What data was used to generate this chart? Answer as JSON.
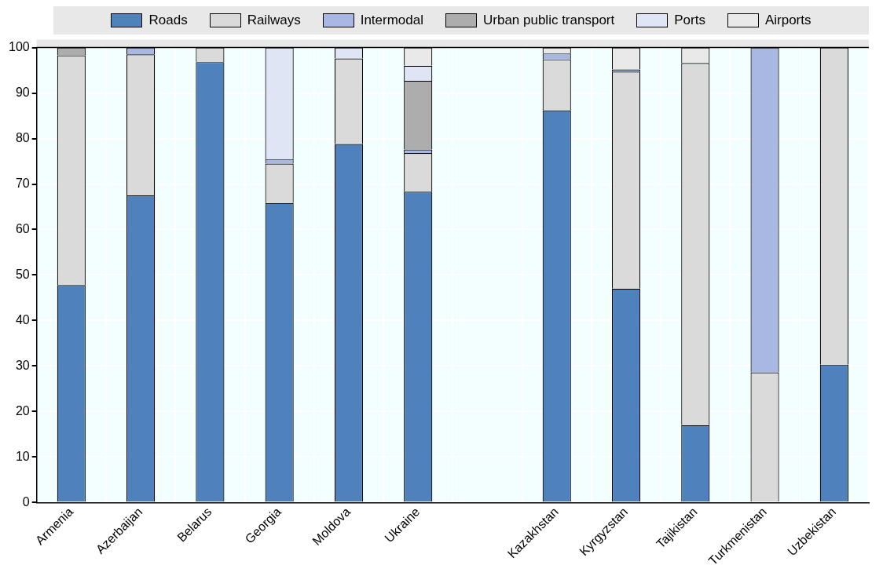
{
  "chart_data": {
    "type": "bar",
    "stacked": true,
    "categories": [
      "Armenia",
      "Azerbaijan",
      "Belarus",
      "Georgia",
      "Moldova",
      "Ukraine",
      null,
      "Kazakhstan",
      "Kyrgyzstan",
      "Tajikistan",
      "Turkmenistan",
      "Uzbekistan"
    ],
    "series": [
      {
        "name": "Roads",
        "color": "#4f81bd",
        "values": [
          47.8,
          67.5,
          96.8,
          65.8,
          78.8,
          68.3,
          null,
          86.2,
          47,
          17,
          null,
          30.3
        ]
      },
      {
        "name": "Railways",
        "color": "#dadada",
        "values": [
          50.5,
          31,
          3.2,
          8.7,
          18.8,
          8.5,
          null,
          11.2,
          47.7,
          79.6,
          28.6,
          69.7
        ]
      },
      {
        "name": "Intermodal",
        "color": "#a8b8e2",
        "values": [
          null,
          1.5,
          null,
          1,
          null,
          0.8,
          null,
          1.3,
          0.5,
          null,
          71.4,
          null
        ]
      },
      {
        "name": "Urban public transport",
        "color": "#adadad",
        "values": [
          1.7,
          null,
          null,
          null,
          null,
          15.1,
          null,
          null,
          null,
          null,
          null,
          null
        ]
      },
      {
        "name": "Ports",
        "color": "#dfe5f5",
        "values": [
          null,
          null,
          null,
          24.5,
          2.4,
          3.3,
          null,
          null,
          null,
          null,
          null,
          null
        ]
      },
      {
        "name": "Airports",
        "color": "#e9e9e9",
        "values": [
          null,
          null,
          null,
          null,
          null,
          4,
          null,
          1.3,
          4.8,
          3.4,
          null,
          null
        ]
      }
    ],
    "ylim": [
      0,
      100
    ],
    "yticks": [
      0,
      10,
      20,
      30,
      40,
      50,
      60,
      70,
      80,
      90,
      100
    ],
    "grid": true,
    "legend": "top"
  }
}
